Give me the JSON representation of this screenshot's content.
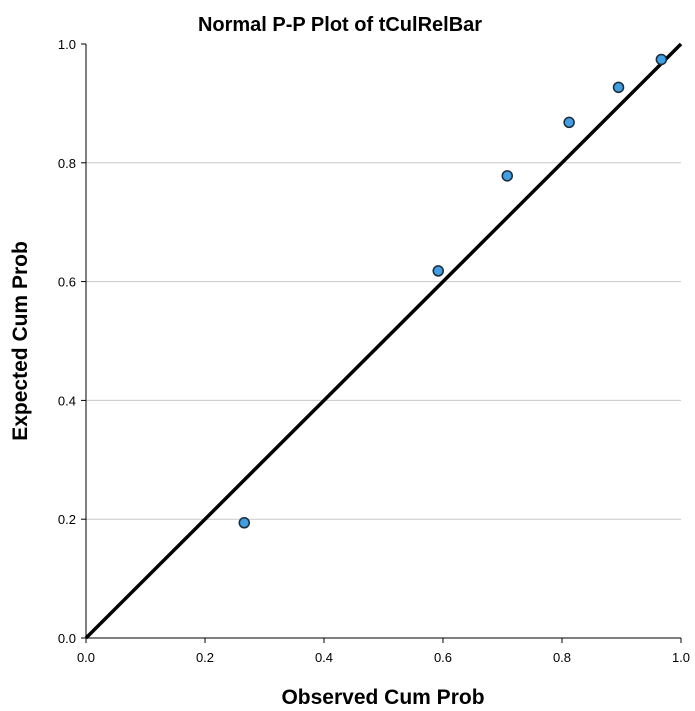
{
  "chart_data": {
    "type": "scatter",
    "title": "Normal P-P Plot of tCulRelBar",
    "xlabel": "Observed Cum Prob",
    "ylabel": "Expected Cum Prob",
    "xlim": [
      0.0,
      1.0
    ],
    "ylim": [
      0.0,
      1.0
    ],
    "x_ticks": [
      "0.0",
      "0.2",
      "0.4",
      "0.6",
      "0.8",
      "1.0"
    ],
    "y_ticks": [
      "0.0",
      "0.2",
      "0.4",
      "0.6",
      "0.8",
      "1.0"
    ],
    "grid": "horizontal",
    "legend": "none",
    "points": [
      {
        "x": 0.266,
        "y": 0.194
      },
      {
        "x": 0.592,
        "y": 0.618
      },
      {
        "x": 0.708,
        "y": 0.778
      },
      {
        "x": 0.812,
        "y": 0.868
      },
      {
        "x": 0.895,
        "y": 0.927
      },
      {
        "x": 0.967,
        "y": 0.974
      }
    ],
    "reference_line": {
      "from": [
        0,
        0
      ],
      "to": [
        1,
        1
      ]
    },
    "colors": {
      "point_fill": "#3f9fe2",
      "point_stroke": "#1c2a38",
      "line": "#000000",
      "grid": "#c8c8c8"
    }
  }
}
